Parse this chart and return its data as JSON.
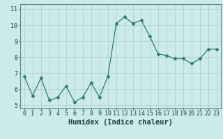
{
  "x": [
    0,
    1,
    2,
    3,
    4,
    5,
    6,
    7,
    8,
    9,
    10,
    11,
    12,
    13,
    14,
    15,
    16,
    17,
    18,
    19,
    20,
    21,
    22,
    23
  ],
  "y": [
    6.8,
    5.6,
    6.7,
    5.3,
    5.5,
    6.2,
    5.2,
    5.5,
    6.4,
    5.5,
    6.8,
    10.1,
    10.5,
    10.1,
    10.3,
    9.3,
    8.2,
    8.1,
    7.9,
    7.9,
    7.6,
    7.9,
    8.5,
    8.5
  ],
  "line_color": "#2e7d6e",
  "marker": "D",
  "marker_size": 2.5,
  "background_color": "#cceaea",
  "grid_color": "#b0d0d0",
  "xlabel": "Humidex (Indice chaleur)",
  "xlabel_fontsize": 7.5,
  "tick_fontsize": 6,
  "xlim": [
    -0.5,
    23.5
  ],
  "ylim": [
    4.8,
    11.3
  ],
  "yticks": [
    5,
    6,
    7,
    8,
    9,
    10,
    11
  ],
  "xticks": [
    0,
    1,
    2,
    3,
    4,
    5,
    6,
    7,
    8,
    9,
    10,
    11,
    12,
    13,
    14,
    15,
    16,
    17,
    18,
    19,
    20,
    21,
    22,
    23
  ]
}
